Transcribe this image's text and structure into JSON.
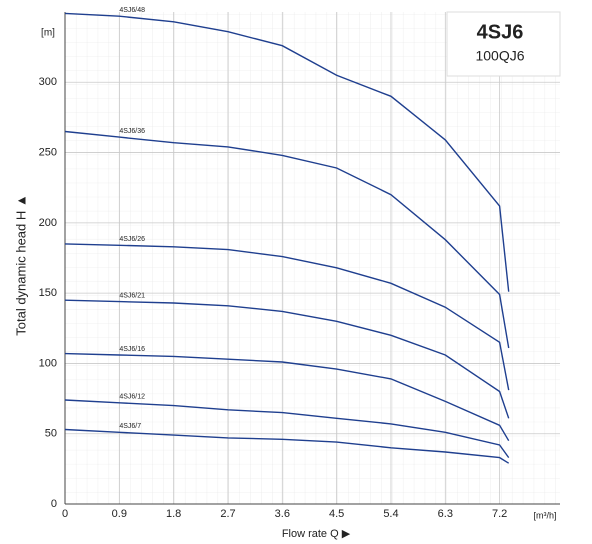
{
  "chart_data": {
    "type": "line",
    "title": "4SJ6",
    "subtitle": "100QJ6",
    "x_label": "Flow rate Q ▶",
    "y_label": "Total dynamic head H ▲",
    "x_unit": "[m³/h]",
    "y_unit": "[m]",
    "x": [
      0,
      0.9,
      1.8,
      2.7,
      3.6,
      4.5,
      5.4,
      6.3,
      7.2,
      7.35
    ],
    "series": [
      {
        "name": "4SJ6/48",
        "color": "#1f3f8f",
        "values": [
          349,
          347,
          343,
          336,
          326,
          305,
          290,
          259,
          212,
          151
        ]
      },
      {
        "name": "4SJ6/36",
        "color": "#1f3f8f",
        "values": [
          265,
          261,
          257,
          254,
          248,
          239,
          220,
          188,
          149,
          111
        ]
      },
      {
        "name": "4SJ6/26",
        "color": "#1f3f8f",
        "values": [
          185,
          184,
          183,
          181,
          176,
          168,
          157,
          140,
          115,
          81
        ]
      },
      {
        "name": "4SJ6/21",
        "color": "#1f3f8f",
        "values": [
          145,
          144,
          143,
          141,
          137,
          130,
          120,
          106,
          80,
          61
        ]
      },
      {
        "name": "4SJ6/16",
        "color": "#1f3f8f",
        "values": [
          107,
          106,
          105,
          103,
          101,
          96,
          89,
          73,
          56,
          45
        ]
      },
      {
        "name": "4SJ6/12",
        "color": "#1f3f8f",
        "values": [
          74,
          72,
          70,
          67,
          65,
          61,
          57,
          51,
          42,
          33
        ]
      },
      {
        "name": "4SJ6/7",
        "color": "#1f3f8f",
        "values": [
          53,
          51,
          49,
          47,
          46,
          44,
          40,
          37,
          33,
          29
        ]
      }
    ],
    "xlim": [
      0,
      8.2
    ],
    "ylim": [
      0,
      350
    ],
    "xticks": [
      0,
      0.9,
      1.8,
      2.7,
      3.6,
      4.5,
      5.4,
      6.3,
      7.2
    ],
    "yticks": [
      0,
      50,
      100,
      150,
      200,
      250,
      300
    ],
    "grid": true
  }
}
